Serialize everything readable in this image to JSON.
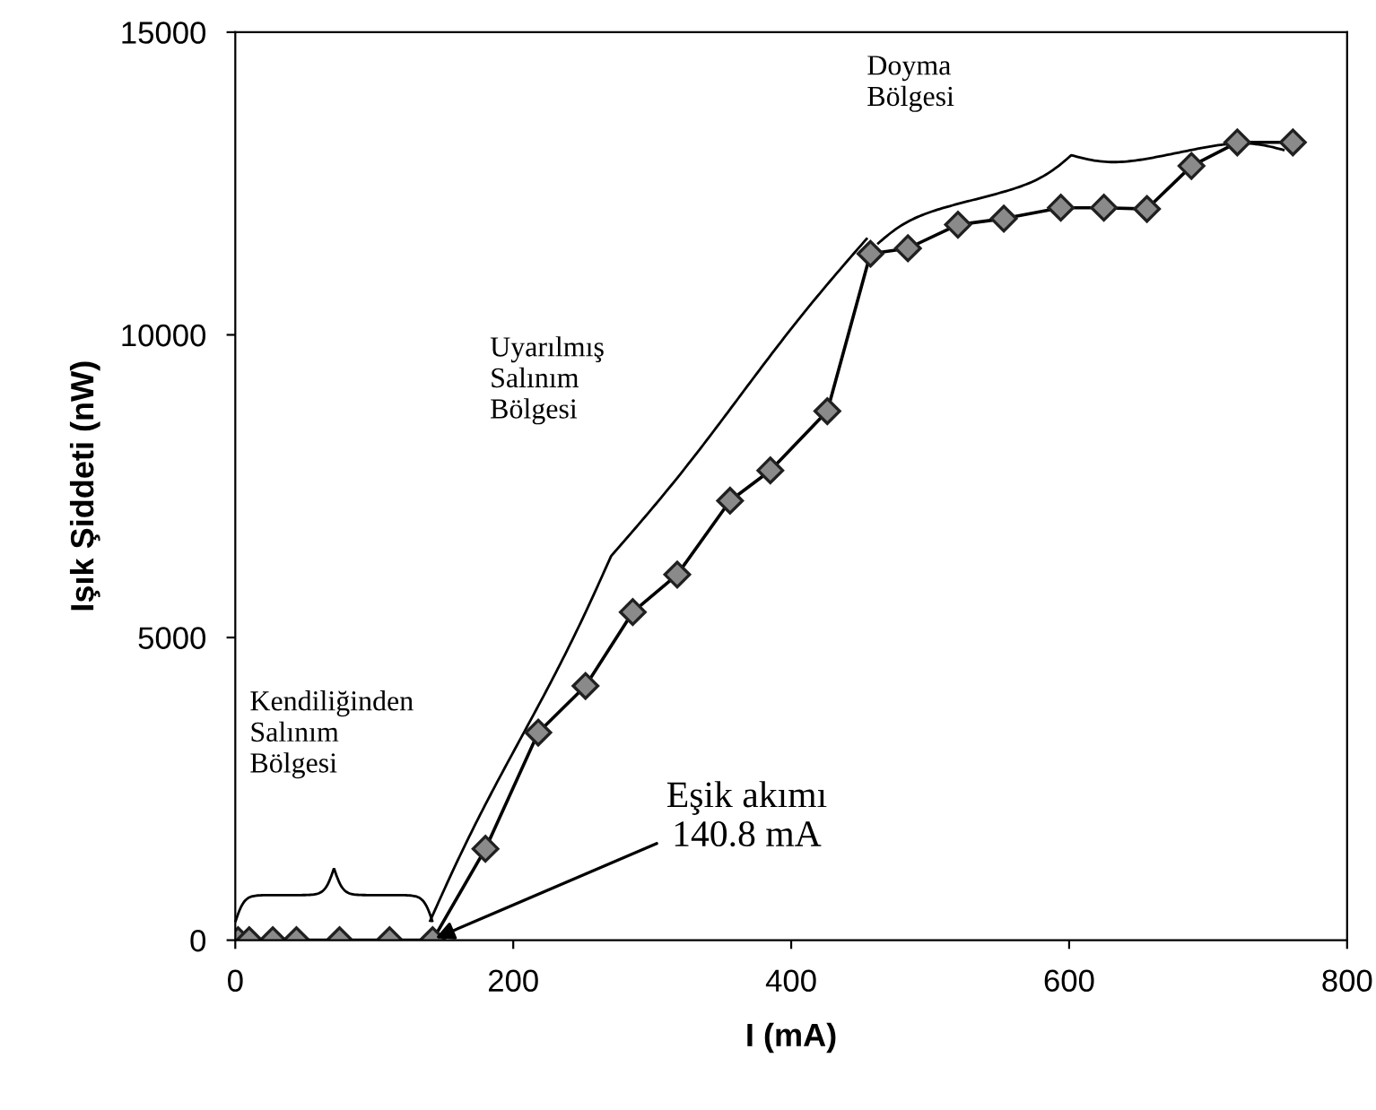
{
  "chart_data": {
    "type": "line",
    "xlabel": "I (mA)",
    "ylabel": "Işık Şiddeti (nW)",
    "x": [
      2,
      10,
      27,
      44,
      75,
      111,
      142,
      180,
      218,
      252,
      286,
      318,
      356,
      385,
      426,
      457,
      484,
      520,
      553,
      594,
      625,
      656,
      688,
      721,
      761
    ],
    "series": [
      {
        "color": "#000000",
        "values": [
          0,
          0,
          0,
          0,
          0,
          0,
          0,
          1510,
          3430,
          4200,
          5420,
          6040,
          7260,
          7760,
          8740,
          11340,
          11430,
          11820,
          11920,
          12100,
          12100,
          12080,
          12790,
          13180,
          13180
        ]
      }
    ],
    "xlim": [
      0,
      800
    ],
    "xticks": [
      0,
      200,
      400,
      600,
      800
    ],
    "ylim": [
      0,
      15000
    ],
    "yticks": [
      0,
      5000,
      10000,
      15000
    ],
    "marker": "diamond",
    "line_style": "solid",
    "grid": false,
    "legend": false,
    "annotations": [
      "Kendiliğinden\nSalınım\nBölgesi",
      "Uyarılmış\nSalınım\nBölgesi",
      "Doyma\nBölgesi",
      {
        "text": "Eşik akımı\n140.8 mA",
        "x": 140.8,
        "y": 0
      }
    ]
  }
}
